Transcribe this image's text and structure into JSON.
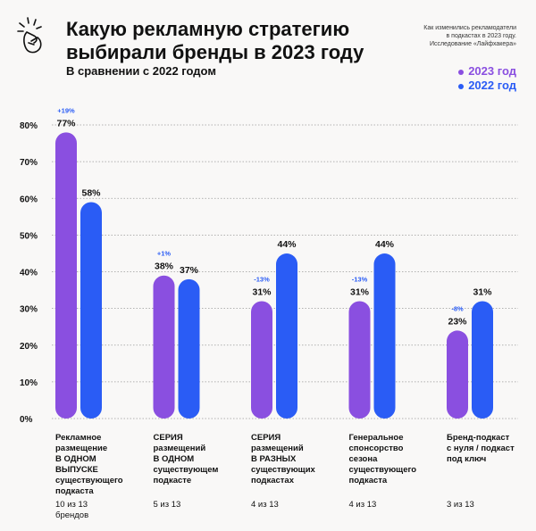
{
  "header": {
    "title": "Какую рекламную стратегию выбирали бренды в 2023 году",
    "subtitle": "В сравнении с 2022 годом",
    "source_lines": [
      "Как изменились рекламодатели",
      "в подкастах в 2023 году.",
      "Исследование «Лайфхакера»"
    ],
    "icon": "fingers-snap-icon"
  },
  "colors": {
    "series_2023": "#8a4fe0",
    "series_2022": "#2a5cf5",
    "change": "#2a5cf5"
  },
  "chart_data": {
    "type": "bar",
    "title": "Какую рекламную стратегию выбирали бренды в 2023 году",
    "subtitle": "В сравнении с 2022 годом",
    "ylim": [
      0,
      80
    ],
    "yticks": [
      "0%",
      "10%",
      "20%",
      "30%",
      "40%",
      "50%",
      "60%",
      "70%",
      "80%"
    ],
    "grid": true,
    "legend_position": "top-right",
    "categories": [
      "Рекламное размещение В ОДНОМ ВЫПУСКЕ существующего подкаста",
      "СЕРИЯ размещений В ОДНОМ существующем подкасте",
      "СЕРИЯ размещений В РАЗНЫХ существующих подкастах",
      "Генеральное спонсорство сезона существующего подкаста",
      "Бренд-подкаст с нуля / подкаст под ключ"
    ],
    "category_lines": [
      [
        "Рекламное",
        "размещение",
        "В ОДНОМ",
        "ВЫПУСКЕ",
        "существующего",
        "подкаста"
      ],
      [
        "СЕРИЯ",
        "размещений",
        "В ОДНОМ",
        "существующем",
        "подкасте"
      ],
      [
        "СЕРИЯ",
        "размещений",
        "В РАЗНЫХ",
        "существующих",
        "подкастах"
      ],
      [
        "Генеральное",
        "спонсорство",
        "сезона",
        "существующего",
        "подкаста"
      ],
      [
        "Бренд-подкаст",
        "с нуля / подкаст",
        "под ключ"
      ]
    ],
    "counts": [
      [
        "10 из 13",
        "брендов"
      ],
      [
        "5 из 13"
      ],
      [
        "4 из 13"
      ],
      [
        "4 из 13"
      ],
      [
        "3 из 13"
      ]
    ],
    "series": [
      {
        "name": "2023 год",
        "values": [
          77,
          38,
          31,
          31,
          23
        ],
        "labels": [
          "77%",
          "38%",
          "31%",
          "31%",
          "23%"
        ]
      },
      {
        "name": "2022 год",
        "values": [
          58,
          37,
          44,
          44,
          31
        ],
        "labels": [
          "58%",
          "37%",
          "44%",
          "44%",
          "31%"
        ]
      }
    ],
    "changes": [
      "+19%",
      "+1%",
      "-13%",
      "-13%",
      "-8%"
    ]
  }
}
